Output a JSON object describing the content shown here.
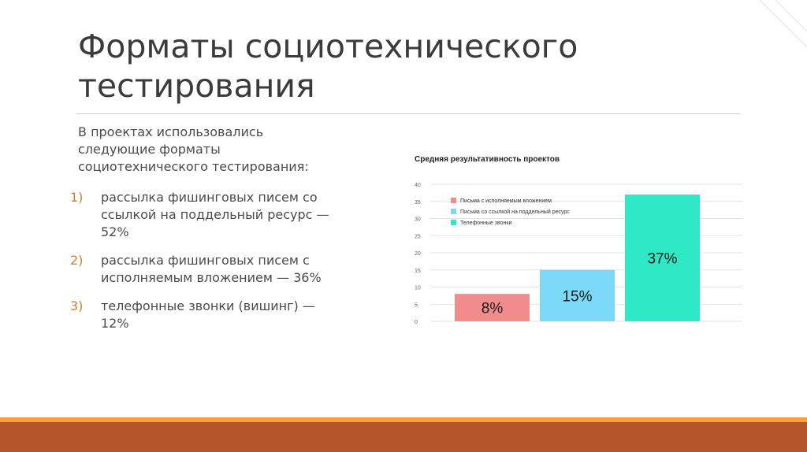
{
  "slide": {
    "title": "Форматы социотехнического тестирования",
    "intro": "В проектах использовались следующие форматы социотехнического тестирования:",
    "items": [
      {
        "num": "1)",
        "text": "рассылка фишинговых писем со ссылкой на поддельный ресурс — 52%"
      },
      {
        "num": "2)",
        "text": "рассылка фишинговых писем с исполняемым вложением — 36%"
      },
      {
        "num": "3)",
        "text": "телефонные звонки (вишинг) — 12%"
      }
    ]
  },
  "colors": {
    "accent_orange": "#d47a2a",
    "footer_thin": "#f4a23a",
    "footer_bar": "#b5552c"
  },
  "chart_data": {
    "type": "bar",
    "title": "Средняя результативность проектов",
    "xlabel": "",
    "ylabel": "",
    "ylim": [
      0,
      40
    ],
    "yticks": [
      0,
      5,
      10,
      15,
      20,
      25,
      30,
      35,
      40
    ],
    "grid": true,
    "legend_position": "top-left",
    "series": [
      {
        "name": "Письма с исполняемым вложением",
        "value": 8,
        "label": "8%",
        "color": "#f28b8b"
      },
      {
        "name": "Письма со ссылкой на поддельный ресурс",
        "value": 15,
        "label": "15%",
        "color": "#79d9f7"
      },
      {
        "name": "Телефонные звонки",
        "value": 37,
        "label": "37%",
        "color": "#2ee8c6"
      }
    ]
  }
}
